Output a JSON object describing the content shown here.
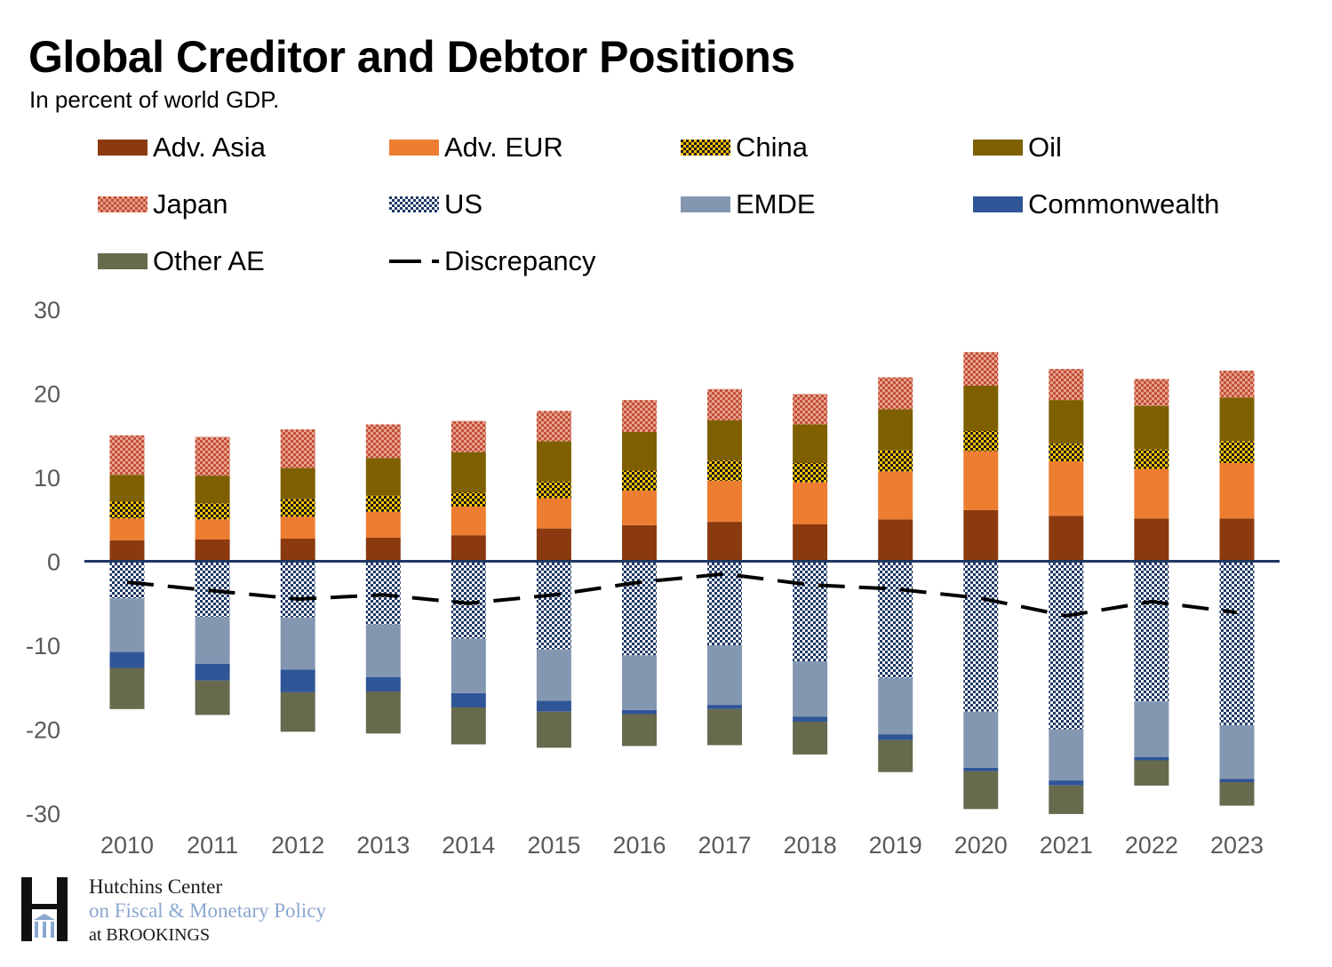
{
  "header": {
    "title": "Global Creditor and Debtor Positions",
    "subtitle": "In percent of world GDP."
  },
  "logo": {
    "line1": "Hutchins Center",
    "line2": "on Fiscal & Monetary Policy",
    "line3": "at BROOKINGS"
  },
  "colors": {
    "adv_asia": "#8B3A0F",
    "adv_eur": "#ED7D31",
    "china_bg": "#FFC000",
    "china_fg": "#1a1a1a",
    "oil": "#7F6000",
    "japan_bg": "#E8A08A",
    "japan_fg": "#C0503A",
    "us_bg": "#FFFFFF",
    "us_fg": "#1F3864",
    "emde": "#8497B0",
    "commonwealth": "#2F5597",
    "other_ae": "#686A4E",
    "zero_line": "#1F3864",
    "axis_text": "#595959"
  },
  "chart_data": {
    "type": "bar",
    "stacked": true,
    "title": "Global Creditor and Debtor Positions",
    "subtitle": "In percent of world GDP.",
    "categories": [
      "2010",
      "2011",
      "2012",
      "2013",
      "2014",
      "2015",
      "2016",
      "2017",
      "2018",
      "2019",
      "2020",
      "2021",
      "2022",
      "2023"
    ],
    "ylim": [
      -30,
      30
    ],
    "yticks": [
      30,
      20,
      10,
      0,
      -10,
      -20,
      -30
    ],
    "ytick_labels": [
      "30",
      "20",
      "10",
      "0",
      "-10",
      "-20",
      "-30"
    ],
    "legend_position": "top",
    "series": [
      {
        "key": "adv_asia",
        "name": "Adv. Asia",
        "values": [
          2.5,
          2.6,
          2.7,
          2.8,
          3.1,
          3.9,
          4.3,
          4.7,
          4.4,
          5.0,
          6.1,
          5.4,
          5.1,
          5.1
        ]
      },
      {
        "key": "adv_eur",
        "name": "Adv. EUR",
        "values": [
          2.6,
          2.4,
          2.6,
          3.1,
          3.4,
          3.6,
          4.1,
          4.9,
          5.0,
          5.7,
          7.0,
          6.5,
          5.9,
          6.6
        ]
      },
      {
        "key": "china",
        "name": "China",
        "values": [
          2.0,
          1.9,
          2.1,
          1.9,
          1.7,
          2.0,
          2.4,
          2.4,
          2.3,
          2.5,
          2.4,
          2.1,
          2.3,
          2.6
        ]
      },
      {
        "key": "oil",
        "name": "Oil",
        "values": [
          3.2,
          3.3,
          3.7,
          4.5,
          4.8,
          4.8,
          4.6,
          4.8,
          4.6,
          4.9,
          5.4,
          5.2,
          5.2,
          5.2
        ]
      },
      {
        "key": "japan",
        "name": "Japan",
        "values": [
          4.7,
          4.6,
          4.6,
          4.0,
          3.7,
          3.6,
          3.8,
          3.7,
          3.6,
          3.8,
          4.0,
          3.7,
          3.2,
          3.2
        ]
      },
      {
        "key": "us",
        "name": "US",
        "values": [
          -4.4,
          -6.6,
          -6.7,
          -7.5,
          -9.2,
          -10.5,
          -11.2,
          -10.0,
          -11.9,
          -13.9,
          -17.9,
          -20.0,
          -16.7,
          -19.5
        ]
      },
      {
        "key": "emde",
        "name": "EMDE",
        "values": [
          -6.4,
          -5.6,
          -6.2,
          -6.3,
          -6.5,
          -6.1,
          -6.5,
          -7.1,
          -6.6,
          -6.7,
          -6.7,
          -6.1,
          -6.6,
          -6.4
        ]
      },
      {
        "key": "commonwealth",
        "name": "Commonwealth",
        "values": [
          -1.9,
          -2.0,
          -2.7,
          -1.7,
          -1.7,
          -1.3,
          -0.5,
          -0.5,
          -0.6,
          -0.7,
          -0.4,
          -0.6,
          -0.4,
          -0.4
        ]
      },
      {
        "key": "other_ae",
        "name": "Other AE",
        "values": [
          -4.9,
          -4.1,
          -4.7,
          -5.0,
          -4.4,
          -4.3,
          -3.8,
          -4.3,
          -3.9,
          -3.8,
          -4.5,
          -3.4,
          -3.0,
          -2.8
        ]
      }
    ],
    "line": {
      "key": "discrepancy",
      "name": "Discrepancy",
      "values": [
        -2.5,
        -3.5,
        -4.5,
        -4.0,
        -5.0,
        -4.0,
        -2.5,
        -1.5,
        -2.8,
        -3.3,
        -4.4,
        -6.5,
        -4.8,
        -6.1
      ]
    }
  }
}
